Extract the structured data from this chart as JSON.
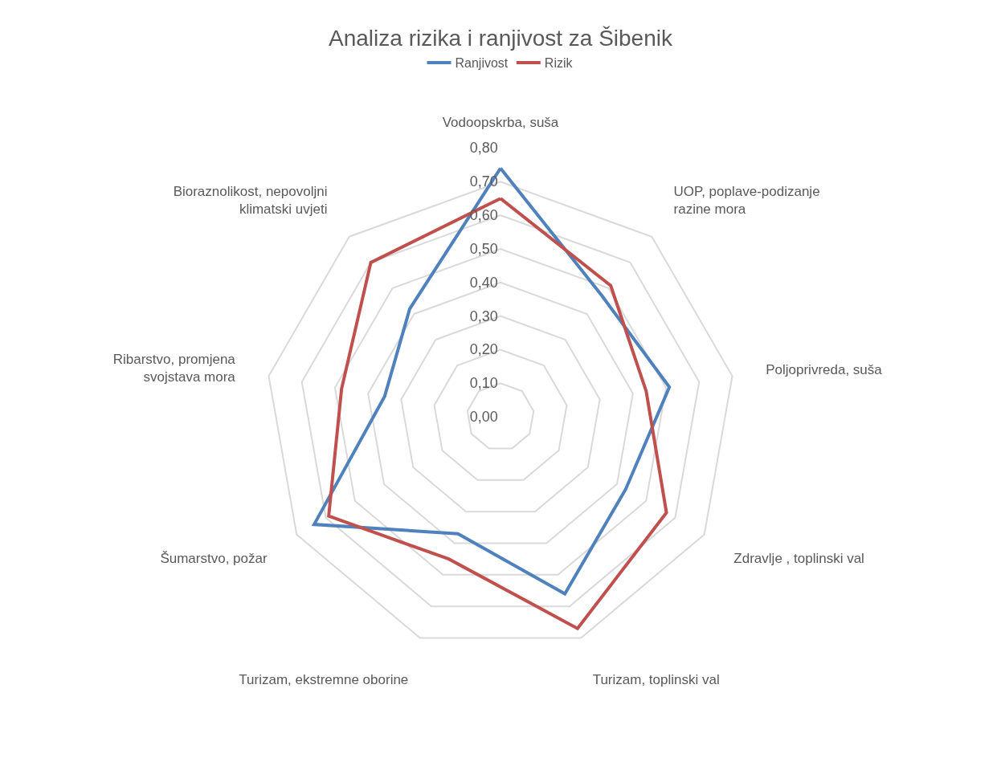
{
  "chart_data": {
    "type": "radar",
    "title": "Analiza rizika i ranjivost za Šibenik",
    "categories": [
      "Vodoopskrba, suša",
      "UOP, poplave-podizanje razine mora",
      "Poljoprivreda, suša",
      "Zdravlje , toplinski val",
      "Turizam, toplinski val",
      "Turizam, ekstremne oborine",
      "Šumarstvo, požar",
      "Ribarstvo, promjena svojstava mora",
      "Bioraznolikost, nepovoljni klimatski uvjeti"
    ],
    "series": [
      {
        "name": "Ranjivost",
        "color": "#4f81bd",
        "values": [
          0.74,
          0.47,
          0.51,
          0.43,
          0.56,
          0.37,
          0.64,
          0.35,
          0.42
        ]
      },
      {
        "name": "Rizik",
        "color": "#c0504d",
        "values": [
          0.65,
          0.51,
          0.44,
          0.57,
          0.67,
          0.45,
          0.59,
          0.48,
          0.6
        ]
      }
    ],
    "ylim": [
      0,
      0.8
    ],
    "yticks": [
      {
        "value": 0,
        "label": "0,00"
      },
      {
        "value": 0.1,
        "label": "0,10"
      },
      {
        "value": 0.2,
        "label": "0,20"
      },
      {
        "value": 0.3,
        "label": "0,30"
      },
      {
        "value": 0.4,
        "label": "0,40"
      },
      {
        "value": 0.5,
        "label": "0,50"
      },
      {
        "value": 0.6,
        "label": "0,60"
      },
      {
        "value": 0.7,
        "label": "0,70"
      },
      {
        "value": 0.8,
        "label": "0,80"
      }
    ],
    "grid": "y",
    "legend": "top",
    "marker": "none",
    "line_style": "solid"
  }
}
